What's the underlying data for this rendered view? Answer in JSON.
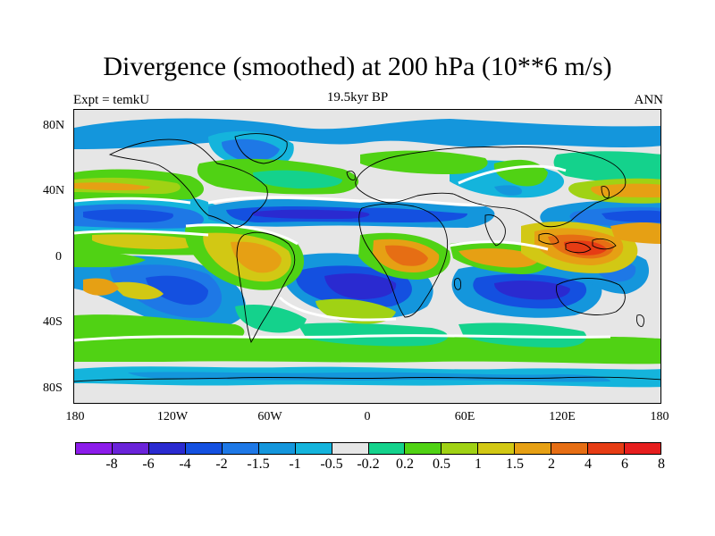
{
  "title": "Divergence (smoothed) at 200 hPa (10**6 m/s)",
  "subtitle_left": "Expt = temkU",
  "subtitle_center": "19.5kyr BP",
  "subtitle_right": "ANN",
  "y_axis": {
    "ticks": [
      {
        "label": "80N",
        "lat": 80
      },
      {
        "label": "40N",
        "lat": 40
      },
      {
        "label": "0",
        "lat": 0
      },
      {
        "label": "40S",
        "lat": -40
      },
      {
        "label": "80S",
        "lat": -80
      }
    ]
  },
  "x_axis": {
    "ticks": [
      {
        "label": "180",
        "lon": -180
      },
      {
        "label": "120W",
        "lon": -120
      },
      {
        "label": "60W",
        "lon": -60
      },
      {
        "label": "0",
        "lon": 0
      },
      {
        "label": "60E",
        "lon": 60
      },
      {
        "label": "120E",
        "lon": 120
      },
      {
        "label": "180",
        "lon": 180
      }
    ]
  },
  "colorbar": {
    "colors": [
      "#8c1cea",
      "#6a23d9",
      "#2a2ad0",
      "#1450e0",
      "#1e78e6",
      "#1496dc",
      "#14b4dc",
      "#e6e6e6",
      "#14d28c",
      "#50d214",
      "#a0d214",
      "#d2c814",
      "#e6a014",
      "#e66e14",
      "#e63c14",
      "#e61e1e"
    ],
    "labels": [
      "-8",
      "-6",
      "-4",
      "-2",
      "-1.5",
      "-1",
      "-0.5",
      "-0.2",
      "0.2",
      "0.5",
      "1",
      "1.5",
      "2",
      "4",
      "6",
      "8"
    ]
  },
  "map_colors": {
    "ocean_neutral": "#e6e6e6",
    "coast": "#000000",
    "zero_contour": "#ffffff"
  }
}
